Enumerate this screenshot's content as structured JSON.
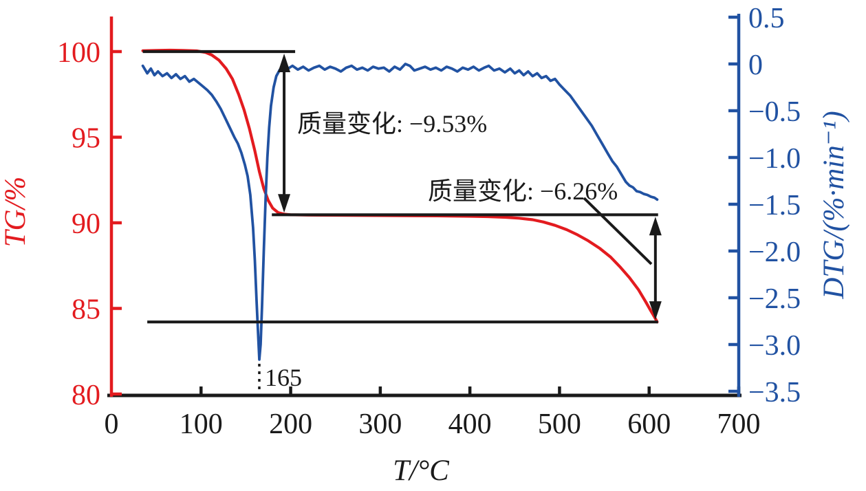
{
  "chart_data": {
    "type": "line",
    "title": "",
    "colors": {
      "tg": "#e31b1f",
      "dtg": "#2152a2",
      "annotation": "#1a1a1a"
    },
    "x_axis": {
      "label": "T/°C",
      "min": 0,
      "max": 700,
      "ticks": [
        {
          "v": 0,
          "label": "0"
        },
        {
          "v": 100,
          "label": "100"
        },
        {
          "v": 200,
          "label": "200"
        },
        {
          "v": 300,
          "label": "300"
        },
        {
          "v": 400,
          "label": "400"
        },
        {
          "v": 500,
          "label": "500"
        },
        {
          "v": 600,
          "label": "600"
        },
        {
          "v": 700,
          "label": "700"
        }
      ]
    },
    "y_axis_left": {
      "label": "TG/%",
      "min": 80,
      "max": 100,
      "color": "#e31b1f",
      "ticks": [
        {
          "v": 100,
          "label": "100"
        },
        {
          "v": 95,
          "label": "95"
        },
        {
          "v": 90,
          "label": "90"
        },
        {
          "v": 85,
          "label": "85"
        },
        {
          "v": 80,
          "label": "80"
        }
      ]
    },
    "y_axis_right": {
      "label": "DTG/(%·min⁻¹)",
      "min": -3.5,
      "max": 0.5,
      "color": "#2152a2",
      "ticks": [
        {
          "v": 0.5,
          "label": "0.5"
        },
        {
          "v": 0,
          "label": "0"
        },
        {
          "v": -0.5,
          "label": "−0.5"
        },
        {
          "v": -1.0,
          "label": "−1.0"
        },
        {
          "v": -1.5,
          "label": "−1.5"
        },
        {
          "v": -2.0,
          "label": "−2.0"
        },
        {
          "v": -2.5,
          "label": "−2.5"
        },
        {
          "v": -3.0,
          "label": "−3.0"
        },
        {
          "v": -3.5,
          "label": "−3.5"
        }
      ]
    },
    "series": [
      {
        "name": "TG",
        "axis": "left",
        "color": "#e31b1f",
        "points": [
          [
            35,
            100.05
          ],
          [
            50,
            100.07
          ],
          [
            65,
            100.08
          ],
          [
            80,
            100.07
          ],
          [
            95,
            100.04
          ],
          [
            105,
            99.95
          ],
          [
            112,
            99.8
          ],
          [
            120,
            99.5
          ],
          [
            128,
            99.0
          ],
          [
            135,
            98.4
          ],
          [
            142,
            97.5
          ],
          [
            148,
            96.6
          ],
          [
            154,
            95.5
          ],
          [
            160,
            94.2
          ],
          [
            165,
            93.0
          ],
          [
            170,
            92.0
          ],
          [
            175,
            91.3
          ],
          [
            180,
            90.85
          ],
          [
            186,
            90.6
          ],
          [
            193,
            90.5
          ],
          [
            200,
            90.47
          ],
          [
            220,
            90.45
          ],
          [
            250,
            90.44
          ],
          [
            280,
            90.43
          ],
          [
            310,
            90.42
          ],
          [
            340,
            90.41
          ],
          [
            370,
            90.4
          ],
          [
            400,
            90.38
          ],
          [
            420,
            90.36
          ],
          [
            440,
            90.32
          ],
          [
            455,
            90.27
          ],
          [
            470,
            90.18
          ],
          [
            482,
            90.05
          ],
          [
            495,
            89.85
          ],
          [
            508,
            89.6
          ],
          [
            520,
            89.3
          ],
          [
            532,
            88.95
          ],
          [
            545,
            88.5
          ],
          [
            557,
            88.0
          ],
          [
            568,
            87.4
          ],
          [
            578,
            86.8
          ],
          [
            588,
            86.1
          ],
          [
            596,
            85.4
          ],
          [
            602,
            84.85
          ],
          [
            606,
            84.5
          ],
          [
            609,
            84.21
          ]
        ]
      },
      {
        "name": "DTG",
        "axis": "right",
        "color": "#2152a2",
        "points": [
          [
            35,
            -0.02
          ],
          [
            40,
            -0.1
          ],
          [
            44,
            -0.05
          ],
          [
            48,
            -0.12
          ],
          [
            52,
            -0.08
          ],
          [
            57,
            -0.13
          ],
          [
            62,
            -0.1
          ],
          [
            67,
            -0.15
          ],
          [
            72,
            -0.11
          ],
          [
            77,
            -0.16
          ],
          [
            82,
            -0.13
          ],
          [
            87,
            -0.19
          ],
          [
            92,
            -0.16
          ],
          [
            97,
            -0.2
          ],
          [
            102,
            -0.24
          ],
          [
            107,
            -0.28
          ],
          [
            112,
            -0.33
          ],
          [
            117,
            -0.4
          ],
          [
            122,
            -0.48
          ],
          [
            127,
            -0.58
          ],
          [
            132,
            -0.68
          ],
          [
            137,
            -0.78
          ],
          [
            141,
            -0.85
          ],
          [
            145,
            -0.95
          ],
          [
            149,
            -1.08
          ],
          [
            152,
            -1.2
          ],
          [
            155,
            -1.4
          ],
          [
            158,
            -1.75
          ],
          [
            160,
            -2.1
          ],
          [
            162,
            -2.55
          ],
          [
            163.5,
            -2.85
          ],
          [
            165,
            -3.16
          ],
          [
            166.5,
            -3.0
          ],
          [
            168,
            -2.6
          ],
          [
            170,
            -2.0
          ],
          [
            172,
            -1.45
          ],
          [
            174,
            -1.0
          ],
          [
            176,
            -0.68
          ],
          [
            178,
            -0.45
          ],
          [
            181,
            -0.25
          ],
          [
            184,
            -0.13
          ],
          [
            188,
            -0.06
          ],
          [
            192,
            -0.03
          ],
          [
            197,
            -0.05
          ],
          [
            202,
            -0.02
          ],
          [
            208,
            -0.06
          ],
          [
            214,
            -0.03
          ],
          [
            220,
            -0.07
          ],
          [
            226,
            -0.04
          ],
          [
            232,
            -0.02
          ],
          [
            238,
            -0.06
          ],
          [
            244,
            -0.03
          ],
          [
            250,
            -0.05
          ],
          [
            256,
            -0.08
          ],
          [
            262,
            -0.04
          ],
          [
            268,
            -0.02
          ],
          [
            274,
            -0.06
          ],
          [
            280,
            -0.04
          ],
          [
            286,
            -0.07
          ],
          [
            292,
            -0.03
          ],
          [
            298,
            -0.05
          ],
          [
            304,
            -0.04
          ],
          [
            310,
            -0.08
          ],
          [
            316,
            -0.03
          ],
          [
            322,
            -0.06
          ],
          [
            328,
            0.0
          ],
          [
            333,
            -0.02
          ],
          [
            338,
            -0.07
          ],
          [
            344,
            -0.05
          ],
          [
            350,
            -0.03
          ],
          [
            356,
            -0.06
          ],
          [
            362,
            -0.04
          ],
          [
            368,
            -0.07
          ],
          [
            374,
            -0.03
          ],
          [
            380,
            -0.05
          ],
          [
            386,
            -0.08
          ],
          [
            392,
            -0.04
          ],
          [
            398,
            -0.06
          ],
          [
            404,
            -0.03
          ],
          [
            410,
            -0.07
          ],
          [
            416,
            -0.04
          ],
          [
            421,
            -0.02
          ],
          [
            427,
            -0.07
          ],
          [
            433,
            -0.05
          ],
          [
            439,
            -0.09
          ],
          [
            445,
            -0.05
          ],
          [
            450,
            -0.1
          ],
          [
            455,
            -0.07
          ],
          [
            460,
            -0.12
          ],
          [
            465,
            -0.08
          ],
          [
            470,
            -0.13
          ],
          [
            475,
            -0.1
          ],
          [
            480,
            -0.15
          ],
          [
            485,
            -0.13
          ],
          [
            490,
            -0.18
          ],
          [
            495,
            -0.16
          ],
          [
            500,
            -0.22
          ],
          [
            506,
            -0.28
          ],
          [
            512,
            -0.34
          ],
          [
            518,
            -0.42
          ],
          [
            524,
            -0.5
          ],
          [
            530,
            -0.58
          ],
          [
            536,
            -0.66
          ],
          [
            542,
            -0.76
          ],
          [
            548,
            -0.86
          ],
          [
            554,
            -0.96
          ],
          [
            559,
            -1.04
          ],
          [
            564,
            -1.1
          ],
          [
            569,
            -1.18
          ],
          [
            574,
            -1.26
          ],
          [
            578,
            -1.3
          ],
          [
            582,
            -1.32
          ],
          [
            586,
            -1.36
          ],
          [
            590,
            -1.37
          ],
          [
            594,
            -1.39
          ],
          [
            598,
            -1.4
          ],
          [
            602,
            -1.42
          ],
          [
            606,
            -1.43
          ],
          [
            609,
            -1.45
          ]
        ]
      }
    ],
    "annotations": {
      "mass_change_1": {
        "text": "质量变化: −9.53%",
        "value_percent": -9.53
      },
      "mass_change_2": {
        "text": "质量变化: −6.26%",
        "value_percent": -6.26
      },
      "peak_temperature": {
        "text": "165",
        "value": 165
      },
      "reference_lines": [
        {
          "tg": 100,
          "t_start": 35,
          "t_end": 205
        },
        {
          "tg": 90.47,
          "t_start": 179,
          "t_end": 610
        },
        {
          "tg": 84.21,
          "t_start": 40,
          "t_end": 610
        }
      ],
      "arrows": [
        {
          "t": 192.7,
          "tg_from": 100,
          "tg_to": 90.47
        },
        {
          "t": 607,
          "tg_from": 90.47,
          "tg_to": 84.21
        }
      ]
    }
  }
}
